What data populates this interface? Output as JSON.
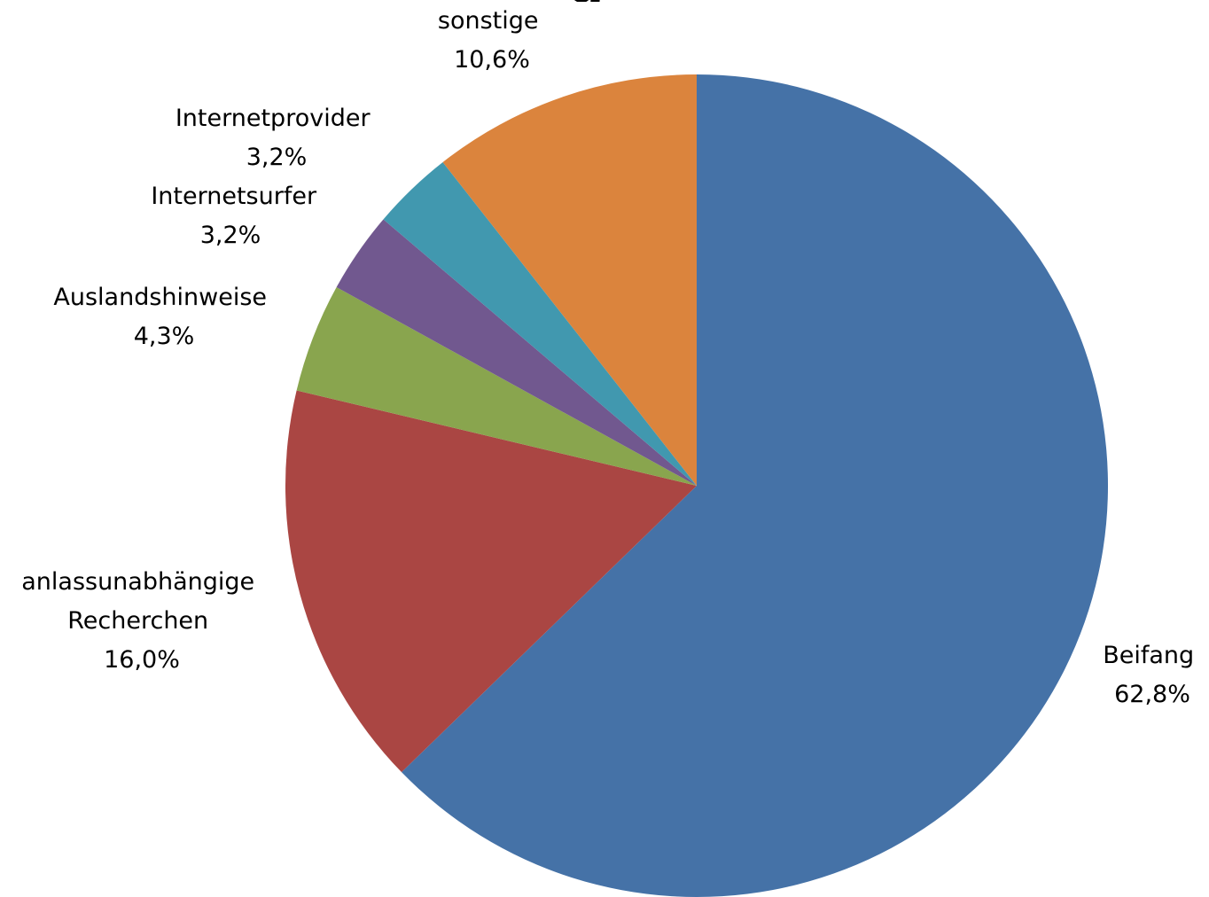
{
  "chart_data": {
    "type": "pie",
    "title": "",
    "start_angle_deg": 0,
    "direction": "clockwise",
    "slices": [
      {
        "label": "Beifang",
        "value": 62.8,
        "value_label": "62,8%",
        "color": "#4572A7"
      },
      {
        "label": "anlassunabhängige Recherchen",
        "label_lines": [
          "anlassunabhängige",
          "Recherchen"
        ],
        "value": 16.0,
        "value_label": "16,0%",
        "color": "#AA4643"
      },
      {
        "label": "Auslandshinweise",
        "label_lines": [
          "Auslandshinweise"
        ],
        "value": 4.3,
        "value_label": "4,3%",
        "color": "#89A54E"
      },
      {
        "label": "Internetsurfer",
        "label_lines": [
          "Internetsurfer"
        ],
        "value": 3.2,
        "value_label": "3,2%",
        "color": "#71588F"
      },
      {
        "label": "Internetprovider",
        "label_lines": [
          "Internetprovider"
        ],
        "value": 3.2,
        "value_label": "3,2%",
        "color": "#4198AF"
      },
      {
        "label": "sonstige",
        "label_lines": [
          "sonstige"
        ],
        "value": 10.6,
        "value_label": "10,6%",
        "color": "#DB843D"
      }
    ]
  }
}
